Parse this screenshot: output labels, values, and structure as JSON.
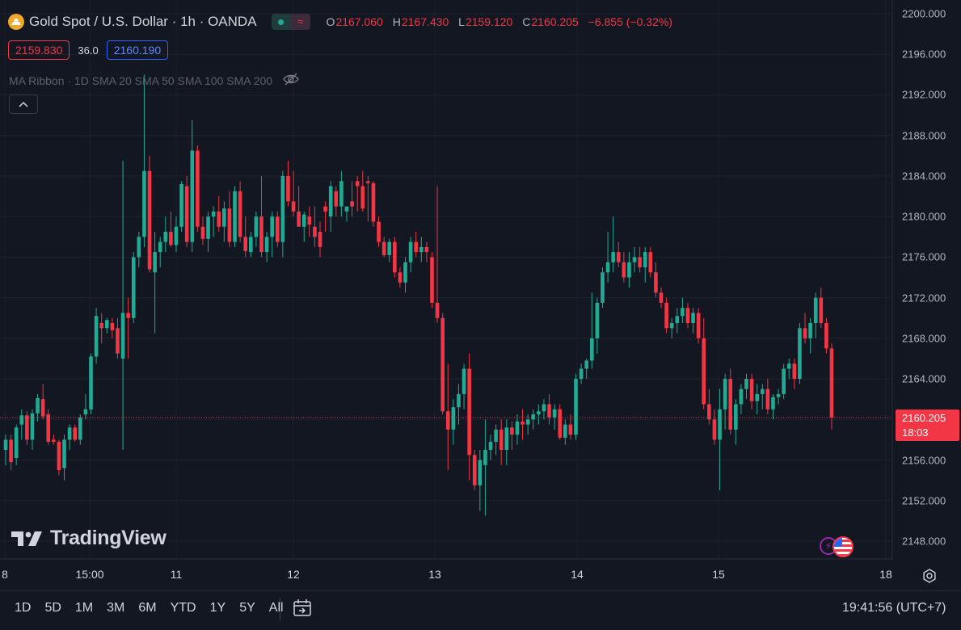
{
  "header": {
    "symbol_title": "Gold Spot / U.S. Dollar · 1h · OANDA",
    "open_label": "O",
    "open": "2167.060",
    "high_label": "H",
    "high": "2167.430",
    "low_label": "L",
    "low": "2159.120",
    "close_label": "C",
    "close": "2160.205",
    "change": "−6.855 (−0.32%)"
  },
  "trade": {
    "sell_price": "2159.830",
    "spread": "36.0",
    "buy_price": "2160.190"
  },
  "indicator": {
    "label": "MA Ribbon · 1D SMA 20 SMA 50 SMA 100 SMA 200"
  },
  "price_tag": {
    "price": "2160.205",
    "countdown": "18:03"
  },
  "brand": {
    "name": "TradingView"
  },
  "ranges": [
    "1D",
    "5D",
    "1M",
    "3M",
    "6M",
    "YTD",
    "1Y",
    "5Y",
    "All"
  ],
  "clock": "19:41:56 (UTC+7)",
  "colors": {
    "up": "#22ab94",
    "down": "#f23645",
    "background": "#131722",
    "grid": "#1e222d"
  },
  "chart_data": {
    "type": "candlestick",
    "title": "Gold Spot / U.S. Dollar · 1h · OANDA",
    "ylim": [
      2146,
      2201
    ],
    "y_ticks": [
      "2200.000",
      "2196.000",
      "2192.000",
      "2188.000",
      "2184.000",
      "2180.000",
      "2176.000",
      "2172.000",
      "2168.000",
      "2164.000",
      "2160.000",
      "2156.000",
      "2152.000",
      "2148.000"
    ],
    "x_ticks": [
      "8",
      "15:00",
      "11",
      "12",
      "13",
      "14",
      "15",
      "18"
    ],
    "current_price": 2160.205,
    "grid": true,
    "candles": [
      [
        2157.0,
        2158.5,
        2155.5,
        2158.0
      ],
      [
        2158.0,
        2158.5,
        2155.0,
        2155.8
      ],
      [
        2156.2,
        2159.5,
        2155.5,
        2159.2
      ],
      [
        2159.5,
        2161.0,
        2158.0,
        2160.4
      ],
      [
        2160.4,
        2160.8,
        2157.5,
        2158.0
      ],
      [
        2158.0,
        2161.0,
        2157.0,
        2160.6
      ],
      [
        2160.6,
        2162.5,
        2159.8,
        2162.1
      ],
      [
        2162.0,
        2163.5,
        2160.0,
        2160.3
      ],
      [
        2160.5,
        2161.0,
        2157.5,
        2157.8
      ],
      [
        2158.0,
        2158.5,
        2157.5,
        2157.8
      ],
      [
        2157.8,
        2158.0,
        2154.5,
        2155.0
      ],
      [
        2155.2,
        2158.5,
        2154.0,
        2158.0
      ],
      [
        2158.0,
        2159.5,
        2157.0,
        2159.2
      ],
      [
        2159.2,
        2159.5,
        2157.8,
        2158.0
      ],
      [
        2158.0,
        2160.5,
        2157.5,
        2160.2
      ],
      [
        2160.5,
        2162.5,
        2160.0,
        2161.0
      ],
      [
        2161.0,
        2166.5,
        2160.5,
        2166.2
      ],
      [
        2166.2,
        2171.0,
        2165.5,
        2170.2
      ],
      [
        2169.5,
        2170.5,
        2167.5,
        2169.0
      ],
      [
        2169.0,
        2170.0,
        2168.5,
        2169.8
      ],
      [
        2169.5,
        2170.0,
        2168.0,
        2168.8
      ],
      [
        2169.0,
        2170.0,
        2166.0,
        2166.5
      ],
      [
        2166.0,
        2185.5,
        2157.0,
        2170.5
      ],
      [
        2170.5,
        2172.0,
        2166.0,
        2170.0
      ],
      [
        2170.0,
        2176.5,
        2169.5,
        2176.0
      ],
      [
        2176.0,
        2178.5,
        2175.0,
        2178.0
      ],
      [
        2178.0,
        2194.0,
        2177.0,
        2184.5
      ],
      [
        2184.5,
        2186.0,
        2174.5,
        2174.8
      ],
      [
        2174.5,
        2178.5,
        2168.5,
        2176.5
      ],
      [
        2176.5,
        2178.0,
        2175.0,
        2177.5
      ],
      [
        2177.5,
        2180.0,
        2176.5,
        2178.5
      ],
      [
        2178.5,
        2180.5,
        2177.0,
        2177.2
      ],
      [
        2177.2,
        2180.0,
        2176.5,
        2179.0
      ],
      [
        2179.0,
        2183.5,
        2178.5,
        2183.2
      ],
      [
        2183.0,
        2184.0,
        2177.0,
        2177.5
      ],
      [
        2177.5,
        2189.5,
        2176.5,
        2186.5
      ],
      [
        2186.5,
        2187.0,
        2178.5,
        2179.0
      ],
      [
        2179.0,
        2180.0,
        2177.2,
        2177.8
      ],
      [
        2177.8,
        2180.5,
        2176.5,
        2180.0
      ],
      [
        2180.0,
        2181.0,
        2178.0,
        2180.5
      ],
      [
        2180.5,
        2182.0,
        2178.5,
        2179.0
      ],
      [
        2179.0,
        2181.5,
        2177.5,
        2180.8
      ],
      [
        2180.8,
        2182.5,
        2177.0,
        2177.5
      ],
      [
        2177.5,
        2183.0,
        2177.0,
        2182.5
      ],
      [
        2182.5,
        2183.5,
        2177.5,
        2178.0
      ],
      [
        2178.0,
        2180.0,
        2176.0,
        2176.6
      ],
      [
        2176.5,
        2178.5,
        2176.0,
        2178.0
      ],
      [
        2178.0,
        2180.5,
        2177.0,
        2180.0
      ],
      [
        2180.0,
        2184.0,
        2176.0,
        2176.5
      ],
      [
        2176.5,
        2178.5,
        2175.5,
        2178.0
      ],
      [
        2178.0,
        2180.5,
        2176.0,
        2180.0
      ],
      [
        2180.0,
        2180.5,
        2177.0,
        2177.5
      ],
      [
        2177.5,
        2184.5,
        2176.0,
        2184.0
      ],
      [
        2184.0,
        2185.5,
        2181.0,
        2181.5
      ],
      [
        2181.5,
        2184.5,
        2180.0,
        2180.5
      ],
      [
        2180.5,
        2183.0,
        2179.0,
        2179.0
      ],
      [
        2179.0,
        2180.5,
        2177.5,
        2180.2
      ],
      [
        2180.0,
        2181.0,
        2178.0,
        2179.2
      ],
      [
        2179.0,
        2181.0,
        2177.0,
        2178.0
      ],
      [
        2178.5,
        2179.5,
        2176.0,
        2177.0
      ],
      [
        2181.0,
        2181.5,
        2178.5,
        2180.5
      ],
      [
        2180.0,
        2183.5,
        2178.5,
        2183.0
      ],
      [
        2182.5,
        2183.0,
        2180.0,
        2181.0
      ],
      [
        2181.0,
        2184.5,
        2180.0,
        2183.5
      ],
      [
        2180.5,
        2181.0,
        2179.5,
        2181.0
      ],
      [
        2181.5,
        2183.5,
        2180.0,
        2181.0
      ],
      [
        2183.5,
        2184.0,
        2180.5,
        2183.0
      ],
      [
        2183.0,
        2184.5,
        2180.5,
        2180.8
      ],
      [
        2183.5,
        2184.0,
        2179.5,
        2183.3
      ],
      [
        2183.3,
        2183.5,
        2179.0,
        2179.5
      ],
      [
        2179.5,
        2180.0,
        2177.0,
        2177.5
      ],
      [
        2177.5,
        2178.0,
        2176.0,
        2176.2
      ],
      [
        2176.2,
        2177.8,
        2175.5,
        2177.5
      ],
      [
        2177.5,
        2178.0,
        2174.0,
        2174.5
      ],
      [
        2174.5,
        2175.0,
        2173.0,
        2173.5
      ],
      [
        2173.5,
        2176.0,
        2172.5,
        2175.5
      ],
      [
        2175.5,
        2178.0,
        2174.5,
        2177.5
      ],
      [
        2177.5,
        2178.5,
        2176.0,
        2176.5
      ],
      [
        2176.5,
        2178.0,
        2175.5,
        2177.0
      ],
      [
        2177.0,
        2177.5,
        2175.5,
        2176.5
      ],
      [
        2176.0,
        2176.5,
        2171.0,
        2171.5
      ],
      [
        2171.5,
        2183.0,
        2169.5,
        2170.0
      ],
      [
        2170.0,
        2170.5,
        2160.5,
        2160.8
      ],
      [
        2160.8,
        2165.5,
        2155.0,
        2159.0
      ],
      [
        2159.0,
        2162.0,
        2157.5,
        2161.2
      ],
      [
        2161.2,
        2163.5,
        2159.5,
        2162.5
      ],
      [
        2162.5,
        2165.5,
        2161.0,
        2165.0
      ],
      [
        2165.0,
        2166.5,
        2154.0,
        2156.5
      ],
      [
        2156.5,
        2157.0,
        2153.0,
        2153.5
      ],
      [
        2153.5,
        2157.0,
        2151.0,
        2156.0
      ],
      [
        2155.5,
        2160.0,
        2150.5,
        2157.0
      ],
      [
        2157.0,
        2158.5,
        2156.0,
        2157.8
      ],
      [
        2157.8,
        2159.5,
        2156.5,
        2159.0
      ],
      [
        2159.0,
        2160.0,
        2155.5,
        2157.0
      ],
      [
        2157.0,
        2160.0,
        2155.5,
        2159.2
      ],
      [
        2159.2,
        2159.8,
        2157.0,
        2158.5
      ],
      [
        2158.5,
        2160.5,
        2157.5,
        2159.8
      ],
      [
        2159.8,
        2161.0,
        2158.0,
        2159.5
      ],
      [
        2159.5,
        2160.5,
        2158.5,
        2160.0
      ],
      [
        2160.0,
        2161.0,
        2159.0,
        2160.5
      ],
      [
        2160.5,
        2161.5,
        2159.5,
        2160.8
      ],
      [
        2160.8,
        2162.0,
        2160.0,
        2161.5
      ],
      [
        2161.5,
        2162.5,
        2159.5,
        2160.2
      ],
      [
        2160.2,
        2161.5,
        2159.0,
        2161.0
      ],
      [
        2161.0,
        2161.5,
        2158.0,
        2158.2
      ],
      [
        2158.2,
        2160.0,
        2157.5,
        2159.5
      ],
      [
        2159.5,
        2160.5,
        2158.0,
        2158.5
      ],
      [
        2158.5,
        2164.5,
        2158.0,
        2164.0
      ],
      [
        2164.0,
        2165.5,
        2163.5,
        2165.0
      ],
      [
        2165.0,
        2166.0,
        2164.0,
        2165.8
      ],
      [
        2165.8,
        2172.5,
        2165.0,
        2168.0
      ],
      [
        2168.0,
        2172.0,
        2166.5,
        2171.5
      ],
      [
        2171.5,
        2175.0,
        2171.0,
        2174.5
      ],
      [
        2174.5,
        2178.5,
        2173.5,
        2175.5
      ],
      [
        2175.5,
        2180.0,
        2174.5,
        2176.5
      ],
      [
        2176.5,
        2177.5,
        2175.0,
        2175.5
      ],
      [
        2175.5,
        2176.5,
        2173.5,
        2174.0
      ],
      [
        2174.0,
        2176.5,
        2173.0,
        2175.5
      ],
      [
        2175.5,
        2177.0,
        2174.5,
        2176.0
      ],
      [
        2176.0,
        2177.0,
        2174.5,
        2175.0
      ],
      [
        2175.0,
        2177.0,
        2173.5,
        2176.5
      ],
      [
        2176.5,
        2177.0,
        2174.0,
        2174.5
      ],
      [
        2174.5,
        2175.5,
        2172.0,
        2172.5
      ],
      [
        2172.5,
        2173.0,
        2171.0,
        2171.5
      ],
      [
        2171.5,
        2172.0,
        2168.5,
        2169.0
      ],
      [
        2169.0,
        2170.0,
        2168.0,
        2169.5
      ],
      [
        2169.5,
        2171.0,
        2168.5,
        2170.2
      ],
      [
        2170.2,
        2172.0,
        2169.5,
        2171.0
      ],
      [
        2171.0,
        2171.5,
        2169.0,
        2169.5
      ],
      [
        2169.5,
        2171.0,
        2168.5,
        2170.5
      ],
      [
        2170.5,
        2171.0,
        2167.5,
        2168.0
      ],
      [
        2168.0,
        2170.0,
        2161.0,
        2161.5
      ],
      [
        2161.5,
        2163.0,
        2159.5,
        2160.0
      ],
      [
        2160.0,
        2161.0,
        2157.5,
        2158.0
      ],
      [
        2158.0,
        2163.0,
        2153.0,
        2161.0
      ],
      [
        2161.0,
        2164.5,
        2159.0,
        2164.0
      ],
      [
        2164.0,
        2165.0,
        2158.5,
        2159.0
      ],
      [
        2159.0,
        2162.0,
        2157.5,
        2161.5
      ],
      [
        2161.5,
        2163.5,
        2160.5,
        2163.0
      ],
      [
        2163.0,
        2164.5,
        2162.0,
        2164.0
      ],
      [
        2164.0,
        2164.5,
        2161.0,
        2161.8
      ],
      [
        2161.8,
        2163.5,
        2160.5,
        2162.5
      ],
      [
        2162.5,
        2163.5,
        2161.0,
        2163.0
      ],
      [
        2163.0,
        2164.0,
        2160.5,
        2161.0
      ],
      [
        2161.0,
        2162.5,
        2160.0,
        2162.2
      ],
      [
        2162.2,
        2163.0,
        2161.5,
        2162.5
      ],
      [
        2162.5,
        2165.5,
        2162.0,
        2165.0
      ],
      [
        2165.0,
        2166.0,
        2164.0,
        2165.5
      ],
      [
        2165.5,
        2166.0,
        2163.0,
        2164.0
      ],
      [
        2164.0,
        2169.5,
        2163.5,
        2169.0
      ],
      [
        2169.0,
        2170.5,
        2167.5,
        2168.0
      ],
      [
        2168.0,
        2170.0,
        2166.5,
        2169.5
      ],
      [
        2169.5,
        2172.5,
        2168.0,
        2172.0
      ],
      [
        2172.0,
        2173.0,
        2169.0,
        2169.5
      ],
      [
        2169.5,
        2170.0,
        2166.5,
        2167.0
      ],
      [
        2167.0,
        2167.5,
        2159.0,
        2160.2
      ]
    ]
  }
}
